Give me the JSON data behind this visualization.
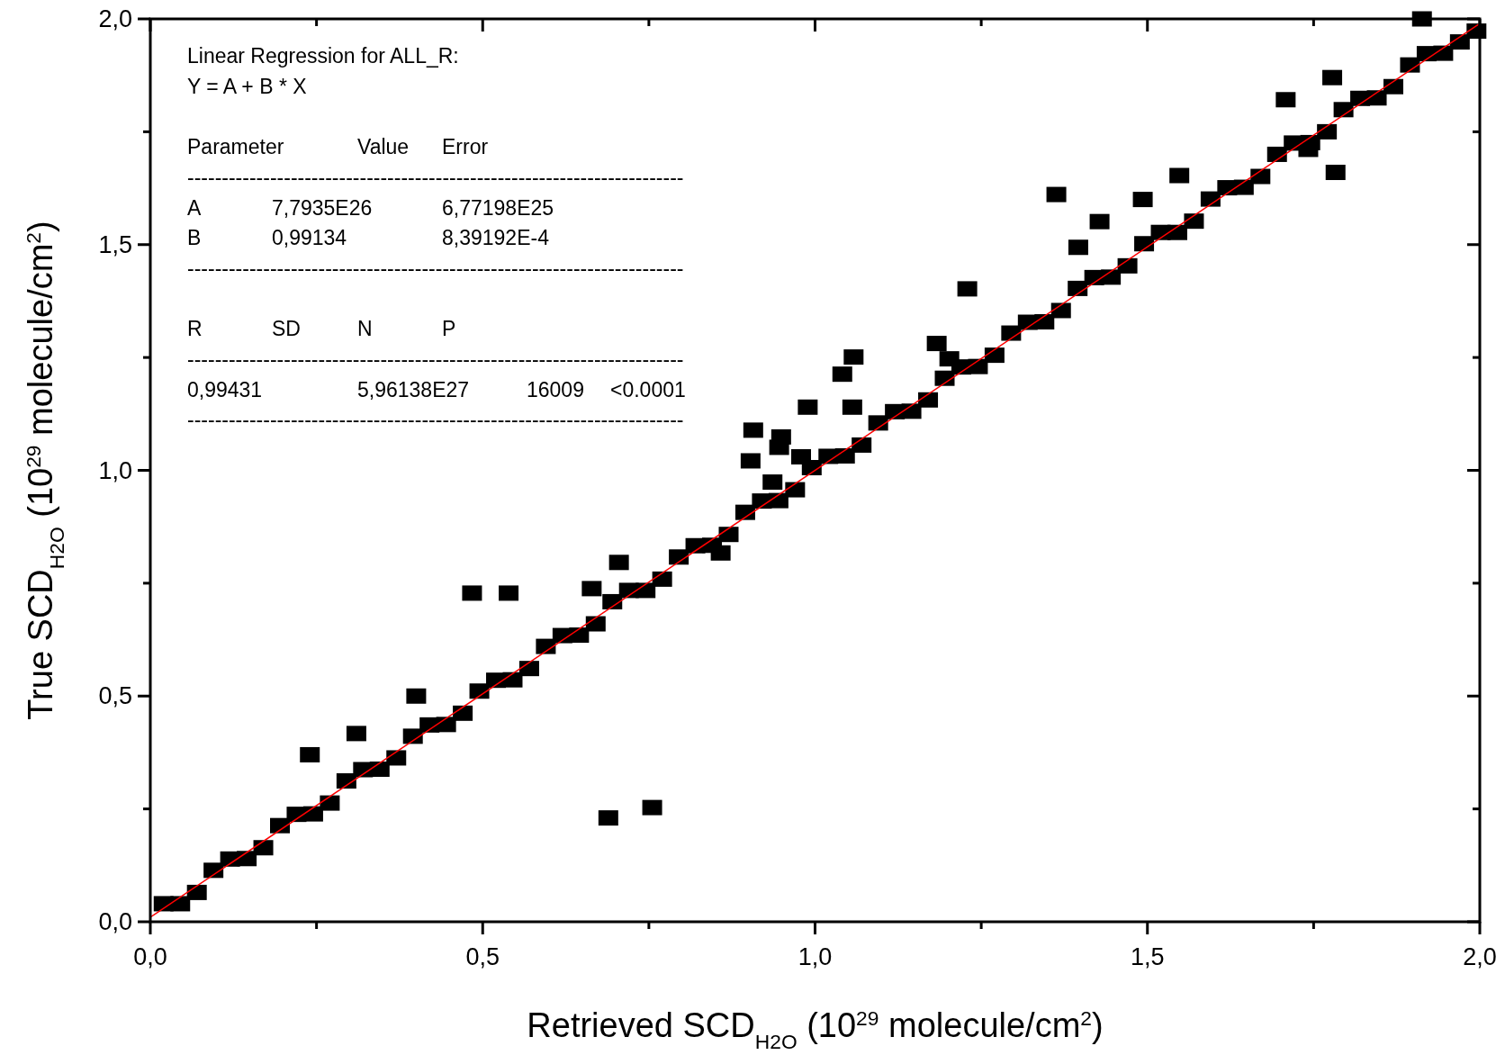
{
  "chart_data": {
    "type": "scatter",
    "xlabel": "Retrieved SCD$_{H2O}$ (10$^{29}$ molecule/cm$^{2}$)",
    "ylabel": "True SCD$_{H2O}$ (10$^{29}$ molecule/cm$^{2}$)",
    "annotations": [
      "Linear Regression for ALL_R:",
      "Y = A + B * X",
      "Parameter\t\tValue\tError",
      "------------------------------------------------------------------------",
      "A\t7,7935E26\t\t6,77198E25",
      "B\t0,99134\t\t8,39192E-4",
      "------------------------------------------------------------------------",
      "R\tSD\tN\tP",
      "------------------------------------------------------------------------",
      "0,99431\t\t5,96138E27\t\t16009\t<0.0001",
      "------------------------------------------------------------------------"
    ],
    "xlim": [
      0,
      2
    ],
    "ylim": [
      0,
      2
    ],
    "xticks": [
      {
        "value": 0,
        "label": "0,0"
      },
      {
        "value": 0.25,
        "label": null
      },
      {
        "value": 0.5,
        "label": "0,5"
      },
      {
        "value": 0.75,
        "label": null
      },
      {
        "value": 1,
        "label": "1,0"
      },
      {
        "value": 1.25,
        "label": null
      },
      {
        "value": 1.5,
        "label": "1,5"
      },
      {
        "value": 1.75,
        "label": null
      },
      {
        "value": 2,
        "label": "2,0"
      }
    ],
    "yticks": [
      {
        "value": 0,
        "label": "0,0"
      },
      {
        "value": 0.25,
        "label": null
      },
      {
        "value": 0.5,
        "label": "0,5"
      },
      {
        "value": 0.75,
        "label": null
      },
      {
        "value": 1,
        "label": "1,0"
      },
      {
        "value": 1.25,
        "label": null
      },
      {
        "value": 1.5,
        "label": "1,5"
      },
      {
        "value": 1.75,
        "label": null
      },
      {
        "value": 2,
        "label": "2,0"
      }
    ],
    "marker": "square",
    "grid": false,
    "series": [
      {
        "color": "#000000",
        "x": [
          0.02,
          0.045,
          0.07,
          0.095,
          0.12,
          0.145,
          0.17,
          0.195,
          0.22,
          0.245,
          0.27,
          0.295,
          0.32,
          0.345,
          0.37,
          0.395,
          0.42,
          0.445,
          0.47,
          0.495,
          0.52,
          0.545,
          0.57,
          0.595,
          0.62,
          0.645,
          0.67,
          0.695,
          0.72,
          0.745,
          0.77,
          0.795,
          0.82,
          0.845,
          0.87,
          0.895,
          0.92,
          0.945,
          0.97,
          0.995,
          1.02,
          1.045,
          1.07,
          1.095,
          1.12,
          1.145,
          1.17,
          1.195,
          1.22,
          1.245,
          1.27,
          1.295,
          1.32,
          1.345,
          1.37,
          1.395,
          1.42,
          1.445,
          1.47,
          1.495,
          1.52,
          1.545,
          1.57,
          1.595,
          1.62,
          1.645,
          1.67,
          1.695,
          1.72,
          1.745,
          1.77,
          1.795,
          1.82,
          1.845,
          1.87,
          1.895,
          1.92,
          1.945,
          1.97,
          1.995,
          0.24,
          0.31,
          0.4,
          0.484,
          0.539,
          0.664,
          0.705,
          0.689,
          0.755,
          0.858,
          0.907,
          0.903,
          0.949,
          0.946,
          0.936,
          0.979,
          0.989,
          1.056,
          1.041,
          1.058,
          1.183,
          1.202,
          1.229,
          1.363,
          1.396,
          1.428,
          1.493,
          1.548,
          1.708,
          1.778,
          1.783,
          1.742,
          1.913
        ],
        "values": [
          0.04,
          0.04,
          0.065,
          0.114,
          0.139,
          0.14,
          0.164,
          0.213,
          0.238,
          0.239,
          0.263,
          0.312,
          0.337,
          0.338,
          0.363,
          0.411,
          0.436,
          0.437,
          0.462,
          0.511,
          0.535,
          0.536,
          0.561,
          0.61,
          0.634,
          0.635,
          0.66,
          0.709,
          0.734,
          0.734,
          0.759,
          0.808,
          0.833,
          0.834,
          0.858,
          0.907,
          0.932,
          0.933,
          0.957,
          1.006,
          1.031,
          1.032,
          1.056,
          1.105,
          1.13,
          1.131,
          1.156,
          1.204,
          1.229,
          1.23,
          1.255,
          1.304,
          1.328,
          1.329,
          1.354,
          1.403,
          1.427,
          1.428,
          1.453,
          1.502,
          1.527,
          1.527,
          1.552,
          1.601,
          1.626,
          1.627,
          1.651,
          1.7,
          1.725,
          1.726,
          1.75,
          1.799,
          1.824,
          1.825,
          1.85,
          1.898,
          1.923,
          1.924,
          1.949,
          1.973,
          0.37,
          0.417,
          0.5,
          0.728,
          0.728,
          0.738,
          0.796,
          0.23,
          0.253,
          0.817,
          1.089,
          1.021,
          1.074,
          1.051,
          0.974,
          1.03,
          1.14,
          1.14,
          1.213,
          1.251,
          1.281,
          1.247,
          1.402,
          1.611,
          1.494,
          1.551,
          1.6,
          1.653,
          1.821,
          1.87,
          1.66,
          1.711,
          2.0
        ]
      },
      {
        "type": "line",
        "color": "#ff0000",
        "x": [
          0,
          2
        ],
        "values": [
          0.01,
          1.99
        ],
        "marker": "none",
        "line_style": "solid"
      }
    ]
  }
}
